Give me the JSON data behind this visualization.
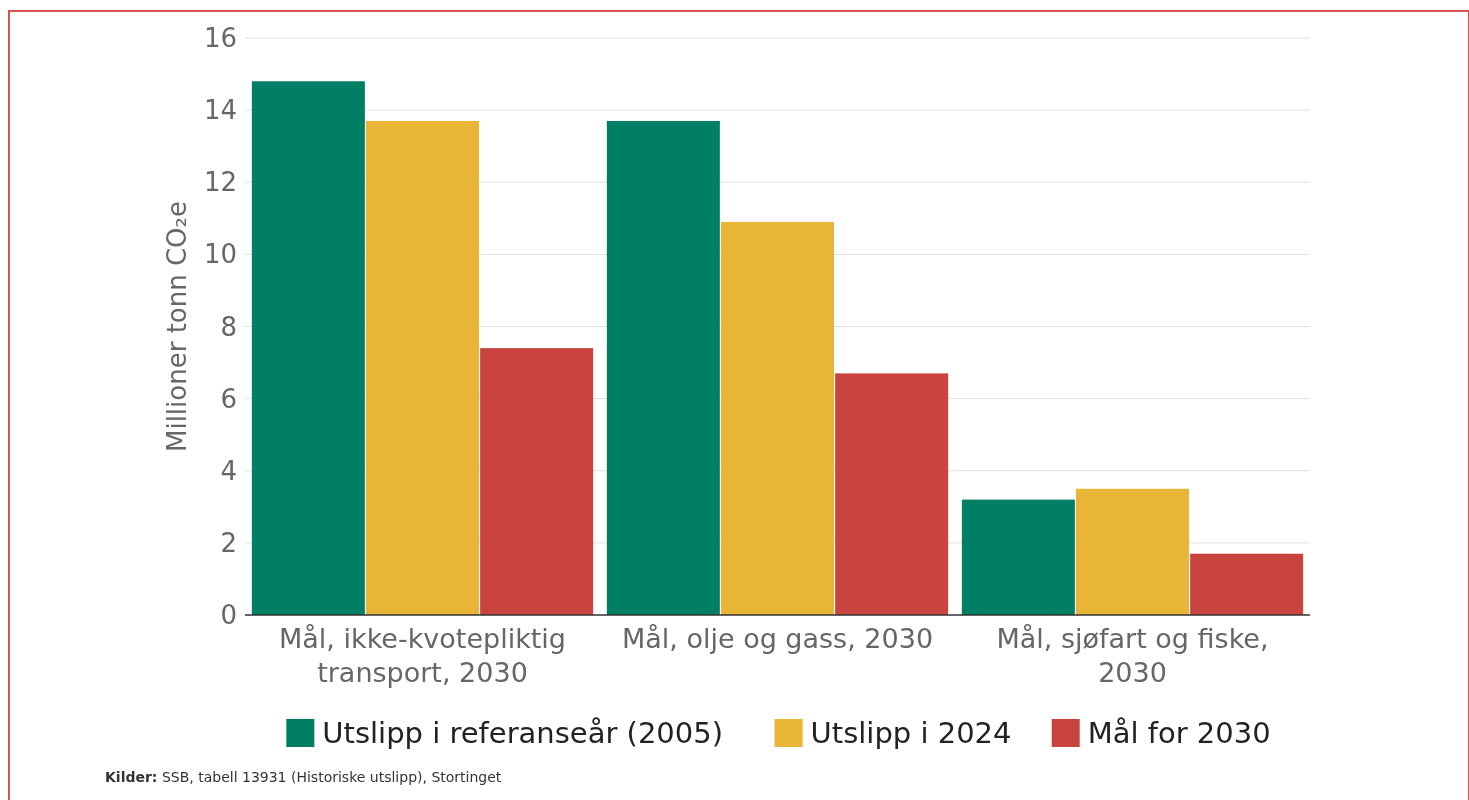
{
  "chart_data": {
    "type": "bar",
    "ylabel": "Millioner tonn CO₂e",
    "categories": [
      "Mål, ikke-kvotepliktig transport, 2030",
      "Mål, olje og gass, 2030",
      "Mål, sjøfart og fiske, 2030"
    ],
    "series": [
      {
        "name": "Utslipp i referanseår (2005)",
        "color": "#007f64",
        "values": [
          14.8,
          13.7,
          3.2
        ]
      },
      {
        "name": "Utslipp i 2024",
        "color": "#e8b537",
        "values": [
          13.7,
          10.9,
          3.5
        ]
      },
      {
        "name": "Mål for 2030",
        "color": "#c9433f",
        "values": [
          7.4,
          6.7,
          1.7
        ]
      }
    ],
    "ylim": [
      0,
      16
    ],
    "yticks": [
      0,
      2,
      4,
      6,
      8,
      10,
      12,
      14,
      16
    ],
    "grid": "y",
    "legend": "bottom",
    "annotations": [
      "Kilder: SSB, tabell 13931 (Historiske utslipp), Stortinget"
    ]
  }
}
